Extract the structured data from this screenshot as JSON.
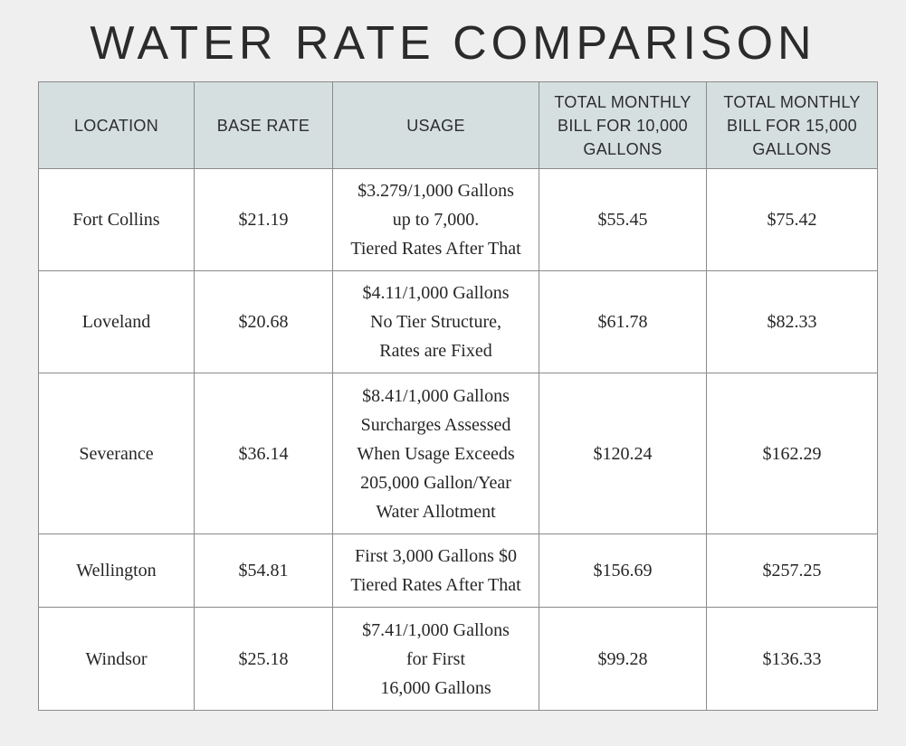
{
  "title": "WATER RATE COMPARISON",
  "headers": [
    "LOCATION",
    "BASE RATE",
    "USAGE",
    "TOTAL MONTHLY BILL FOR 10,000 GALLONS",
    "TOTAL MONTHLY BILL FOR 15,000 GALLONS"
  ],
  "rows": [
    {
      "location": "Fort Collins",
      "base": "$21.19",
      "usage": [
        "$3.279/1,000 Gallons",
        "up to 7,000.",
        "Tiered Rates After That"
      ],
      "bill10": "$55.45",
      "bill15": "$75.42"
    },
    {
      "location": "Loveland",
      "base": "$20.68",
      "usage": [
        "$4.11/1,000 Gallons",
        "No Tier Structure,",
        "Rates are Fixed"
      ],
      "bill10": "$61.78",
      "bill15": "$82.33"
    },
    {
      "location": "Severance",
      "base": "$36.14",
      "usage": [
        "$8.41/1,000 Gallons",
        "Surcharges Assessed",
        "When Usage Exceeds",
        "205,000 Gallon/Year",
        "Water Allotment"
      ],
      "bill10": "$120.24",
      "bill15": "$162.29"
    },
    {
      "location": "Wellington",
      "base": "$54.81",
      "usage": [
        "First 3,000 Gallons $0",
        "Tiered Rates After That"
      ],
      "bill10": "$156.69",
      "bill15": "$257.25"
    },
    {
      "location": "Windsor",
      "base": "$25.18",
      "usage": [
        "$7.41/1,000 Gallons",
        "for First",
        "16,000 Gallons"
      ],
      "bill10": "$99.28",
      "bill15": "$136.33"
    }
  ]
}
